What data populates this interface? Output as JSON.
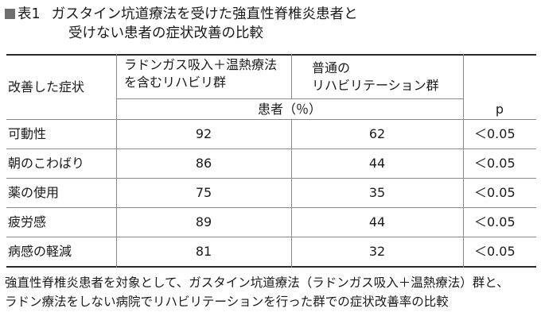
{
  "title": {
    "square_color": "#6e6e6e",
    "prefix": "表1",
    "line1": "ガスタイン坑道療法を受けた強直性脊椎炎患者と",
    "line2": "受けない患者の症状改善の比較"
  },
  "table": {
    "header": {
      "col_symptom": "改善した症状",
      "col_group_a": [
        "ラドンガス吸入＋温熱療法",
        "を含むリハビリ群"
      ],
      "col_group_b": [
        "普通の",
        "リハビリテーション群"
      ],
      "subheader": "患者（％）",
      "col_p": "p"
    },
    "rows": [
      {
        "symptom": "可動性",
        "a": "92",
        "b": "62",
        "p": "＜0.05"
      },
      {
        "symptom": "朝のこわばり",
        "a": "86",
        "b": "44",
        "p": "＜0.05"
      },
      {
        "symptom": "薬の使用",
        "a": "75",
        "b": "35",
        "p": "＜0.05"
      },
      {
        "symptom": "疲労感",
        "a": "89",
        "b": "44",
        "p": "＜0.05"
      },
      {
        "symptom": "病感の軽減",
        "a": "81",
        "b": "32",
        "p": "＜0.05"
      }
    ]
  },
  "note": {
    "line1": "強直性脊椎炎患者を対象として、ガスタイン坑道療法（ラドンガス吸入＋温熱療法）群と、",
    "line2": "ラドン療法をしない病院でリハビリテーションを行った群での症状改善率の比較"
  }
}
